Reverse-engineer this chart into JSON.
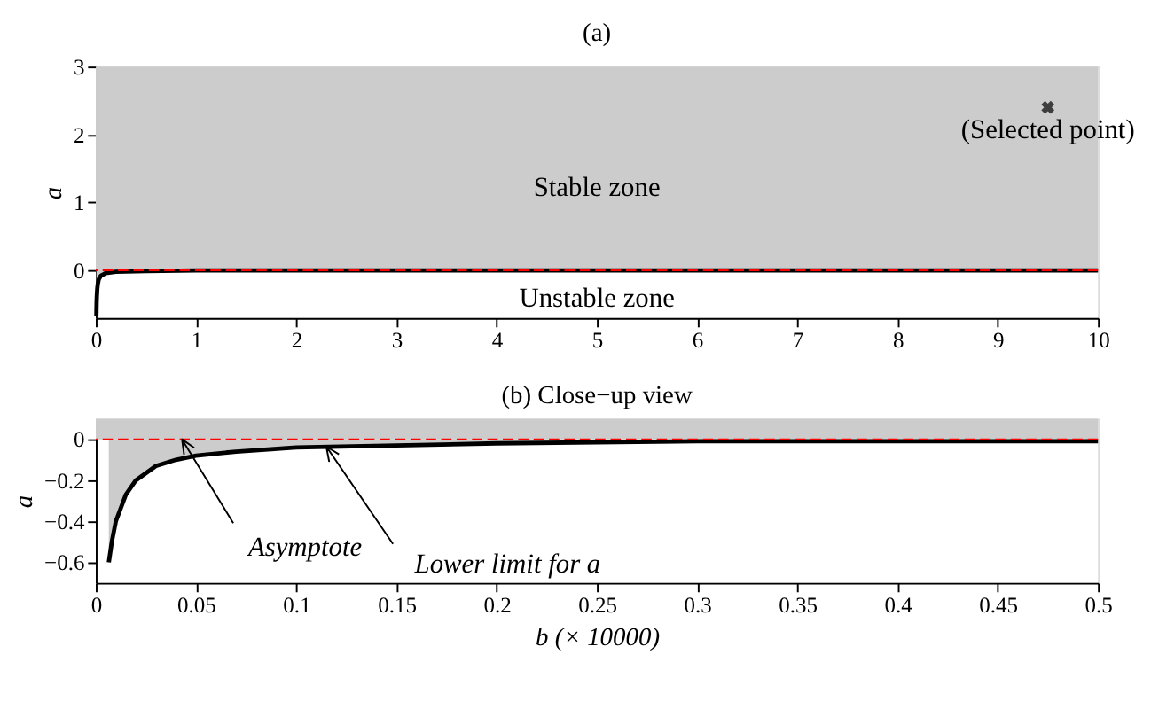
{
  "chart_data": [
    {
      "type": "line",
      "title": "(a)",
      "ylabel": "a",
      "xlim": [
        0,
        10
      ],
      "ylim": [
        -0.7,
        3
      ],
      "xticks": [
        0,
        1,
        2,
        3,
        4,
        5,
        6,
        7,
        8,
        9,
        10
      ],
      "yticks": [
        0,
        1,
        2,
        3
      ],
      "grid": false,
      "bands": [
        {
          "axis": "y",
          "from": 0,
          "to": 3,
          "color": "#cccccc"
        }
      ],
      "series": [
        {
          "type": "area",
          "color": "#cccccc",
          "x": [
            0.006,
            0.008,
            0.01,
            0.015,
            0.02,
            0.03,
            0.05,
            0.1,
            0.2,
            0.5,
            1,
            2,
            5,
            10
          ],
          "values": [
            -0.67,
            -0.5,
            -0.4,
            -0.27,
            -0.2,
            -0.13,
            -0.08,
            -0.04,
            -0.02,
            -0.01,
            0,
            0,
            0,
            0
          ]
        },
        {
          "type": "scatter",
          "color": "#000000",
          "marker": "cross",
          "x": [
            9.5
          ],
          "values": [
            2.4
          ]
        }
      ],
      "ref_lines": [
        {
          "axis": "y",
          "value": 0,
          "color": "#ff0000",
          "line_style": "dashed"
        }
      ],
      "annotations": [
        "(Selected point)",
        "Stable zone",
        "Unstable zone"
      ]
    },
    {
      "type": "line",
      "title": "(b) Close−up view",
      "xlabel": "b (× 10000)",
      "ylabel": "a",
      "xlim": [
        0,
        0.5
      ],
      "ylim": [
        -0.7,
        0.1
      ],
      "xticks": [
        0,
        0.05,
        0.1,
        0.15,
        0.2,
        0.25,
        0.3,
        0.35,
        0.4,
        0.45,
        0.5
      ],
      "yticks": [
        -0.6,
        -0.4,
        -0.2,
        0
      ],
      "grid": false,
      "bands": [
        {
          "axis": "y",
          "from": 0,
          "to": 0.1,
          "color": "#cccccc"
        }
      ],
      "series": [
        {
          "type": "area",
          "color": "#cccccc",
          "x": [
            0.0065,
            0.008,
            0.01,
            0.015,
            0.02,
            0.03,
            0.04,
            0.05,
            0.07,
            0.1,
            0.15,
            0.2,
            0.3,
            0.4,
            0.5
          ],
          "values": [
            -0.6,
            -0.5,
            -0.4,
            -0.27,
            -0.2,
            -0.13,
            -0.1,
            -0.08,
            -0.06,
            -0.04,
            -0.03,
            -0.02,
            -0.01,
            -0.01,
            -0.01
          ]
        }
      ],
      "ref_lines": [
        {
          "axis": "y",
          "value": 0,
          "color": "#ff0000",
          "line_style": "dashed"
        }
      ],
      "annotations": [
        {
          "text": "Asymptote",
          "x": 0.043,
          "y": 0
        },
        {
          "text": "Lower limit for a",
          "x": 0.115,
          "y": -0.035
        }
      ]
    }
  ]
}
